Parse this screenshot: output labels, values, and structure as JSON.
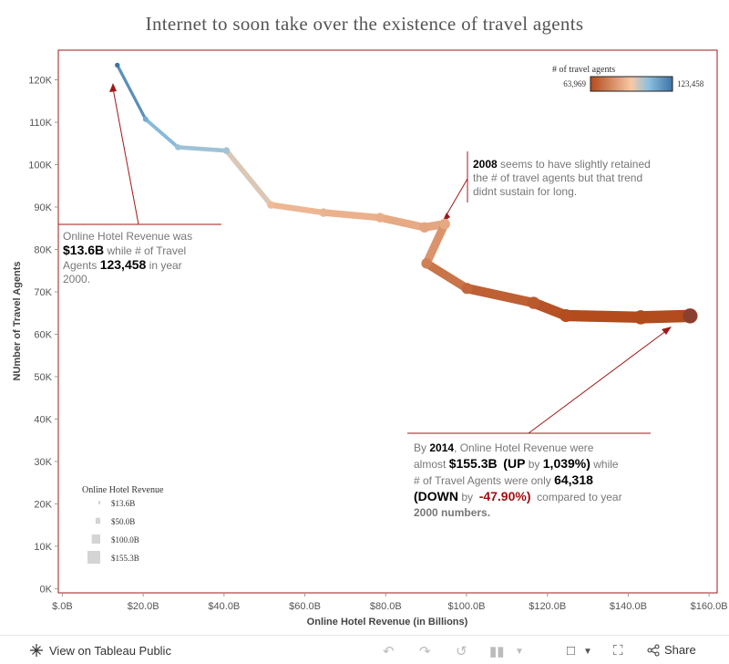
{
  "title": "Internet to soon take over the existence of travel agents",
  "chart_data": {
    "type": "line",
    "title": "Internet to soon take over the existence of travel agents",
    "xlabel": "Online Hotel Revenue (in Billions)",
    "ylabel": "NUmber of Travel Agents",
    "xlim": [
      -1,
      162
    ],
    "ylim": [
      -1000,
      127000
    ],
    "x_ticks": [
      0,
      20,
      40,
      60,
      80,
      100,
      120,
      140,
      160
    ],
    "x_tick_labels": [
      "$.0B",
      "$20.0B",
      "$40.0B",
      "$60.0B",
      "$80.0B",
      "$100.0B",
      "$120.0B",
      "$140.0B",
      "$160.0B"
    ],
    "y_ticks": [
      0,
      10000,
      20000,
      30000,
      40000,
      50000,
      60000,
      70000,
      80000,
      90000,
      100000,
      110000,
      120000
    ],
    "y_tick_labels": [
      "0K",
      "10K",
      "20K",
      "30K",
      "40K",
      "50K",
      "60K",
      "70K",
      "80K",
      "90K",
      "100K",
      "110K",
      "120K"
    ],
    "series": [
      {
        "name": "# of travel agents",
        "x": [
          13.6,
          20.6,
          28.6,
          40.6,
          51.6,
          64.6,
          78.6,
          89.6,
          94.6,
          90.1,
          100.1,
          116.6,
          124.6,
          143.1,
          155.3
        ],
        "y": [
          123458,
          110700,
          104100,
          103300,
          90500,
          88700,
          87500,
          85200,
          86000,
          76700,
          70800,
          67400,
          64400,
          64000,
          64318
        ]
      }
    ],
    "color_legend": {
      "title": "# of travel agents",
      "min_label": "63,969",
      "max_label": "123,458",
      "min_color": "#b24a1c",
      "mid_color": "#f7c9a6",
      "max_color": "#3e73a6"
    },
    "size_legend": {
      "title": "Online Hotel Revenue",
      "labels": [
        "$13.6B",
        "$50.0B",
        "$100.0B",
        "$155.3B"
      ],
      "values": [
        13.6,
        50.0,
        100.0,
        155.3
      ]
    }
  },
  "annotations": {
    "left": {
      "line1": "Online Hotel Revenue was",
      "rev": "$13.6B",
      "mid": " while # of Travel",
      "agents_word": "Agents ",
      "agents_val": "123,458",
      "tail": " in year",
      "year": "2000."
    },
    "middle": {
      "year": "2008",
      "text1": " seems to have slightly retained",
      "text2": "the # of travel agents but that trend",
      "text3": "didnt sustain for long."
    },
    "right": {
      "by": "By ",
      "year": "2014",
      "t1": ", Online Hotel Revenue were",
      "almost": "almost ",
      "rev": "$155.3B",
      "up_open": "(UP",
      "by2": " by ",
      "pct_up": "1,039%)",
      "while": " while",
      "t2": "# of Travel Agents were only ",
      "agents": "64,318",
      "down_open": "(DOWN",
      "by3": " by ",
      "pct_down": "-47.90%)",
      "t3": " compared to year",
      "t4": "2000 numbers."
    }
  },
  "footer": {
    "view_label": "View on Tableau Public",
    "share_label": "Share"
  }
}
